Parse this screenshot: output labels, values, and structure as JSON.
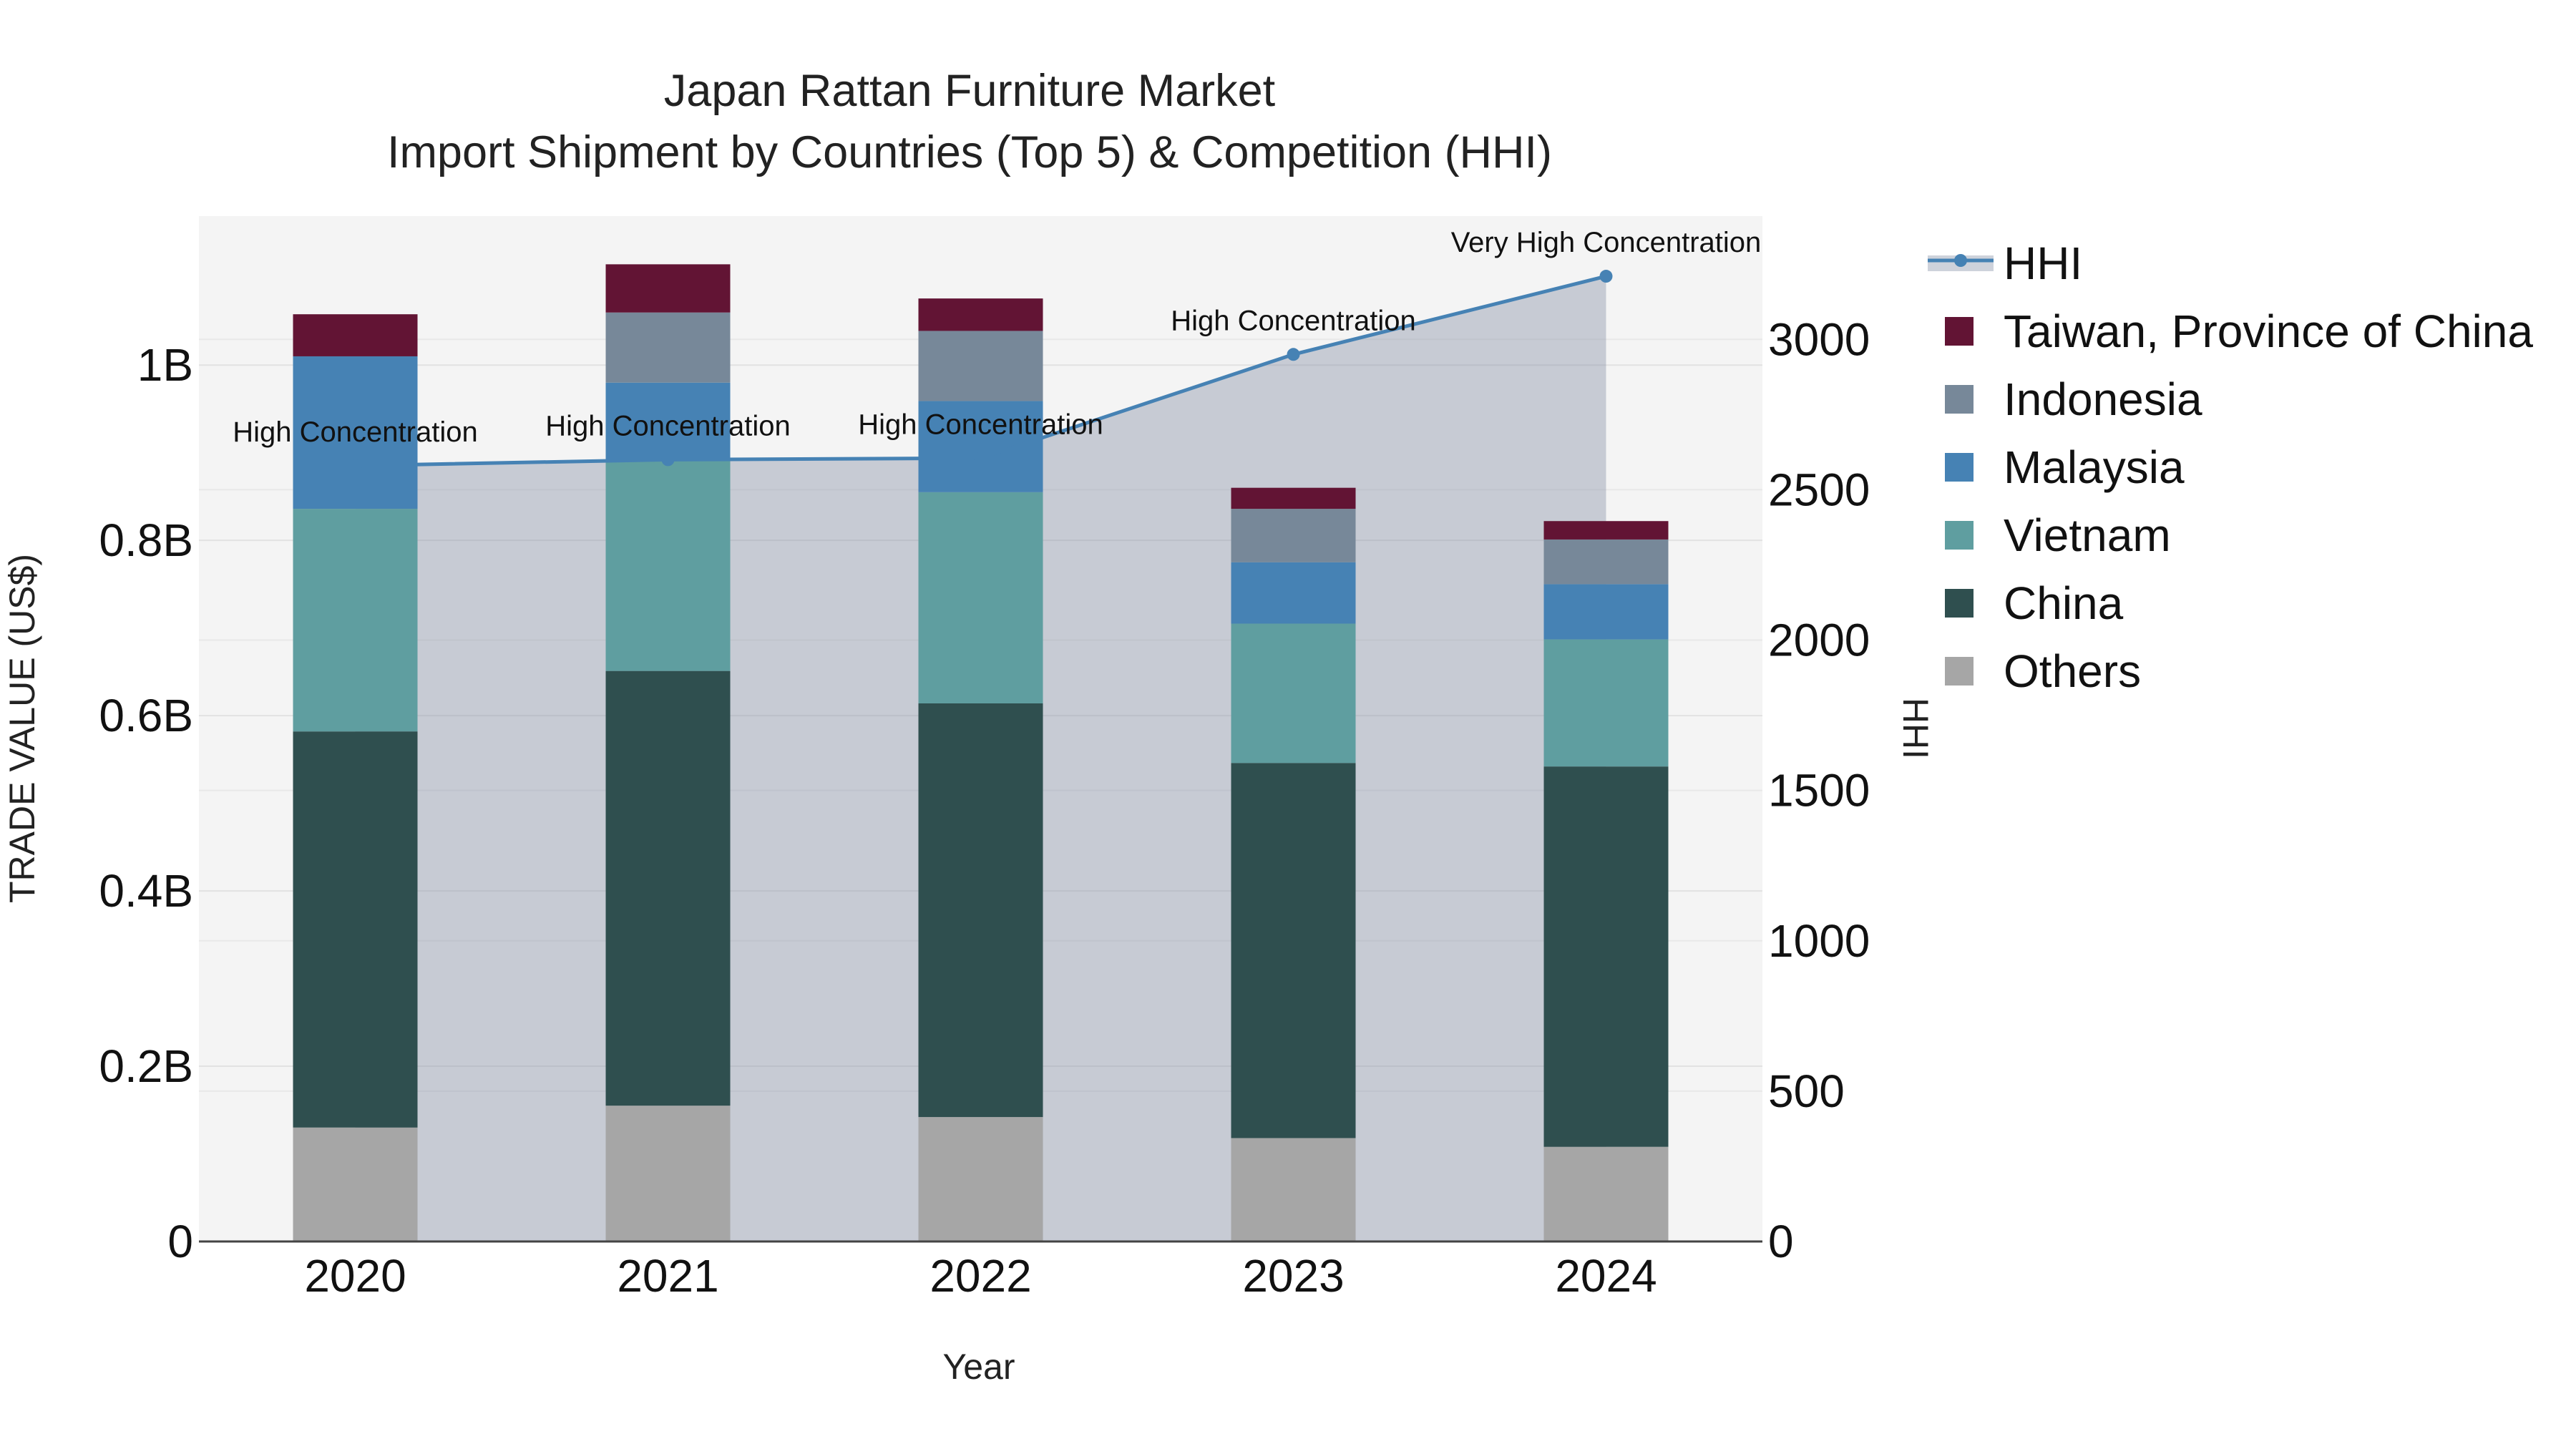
{
  "chart_data": {
    "type": "bar",
    "title": "Japan Rattan Furniture Market",
    "subtitle": "Import Shipment by Countries (Top 5) & Competition (HHI)",
    "xlabel": "Year",
    "ylabel": "TRADE VALUE (US$)",
    "y2label": "HHI",
    "categories": [
      "2020",
      "2021",
      "2022",
      "2023",
      "2024"
    ],
    "stacked": true,
    "ylim": [
      0,
      1170000000
    ],
    "y2lim": [
      0,
      3410
    ],
    "yticks": [
      {
        "value": 0,
        "label": "0"
      },
      {
        "value": 200000000,
        "label": "0.2B"
      },
      {
        "value": 400000000,
        "label": "0.4B"
      },
      {
        "value": 600000000,
        "label": "0.6B"
      },
      {
        "value": 800000000,
        "label": "0.8B"
      },
      {
        "value": 1000000000,
        "label": "1B"
      }
    ],
    "y2ticks": [
      {
        "value": 0,
        "label": "0"
      },
      {
        "value": 500,
        "label": "500"
      },
      {
        "value": 1000,
        "label": "1000"
      },
      {
        "value": 1500,
        "label": "1500"
      },
      {
        "value": 2000,
        "label": "2000"
      },
      {
        "value": 2500,
        "label": "2500"
      },
      {
        "value": 3000,
        "label": "3000"
      }
    ],
    "series": [
      {
        "name": "Others",
        "color": "#a6a6a6",
        "values": [
          130000000,
          155000000,
          142000000,
          118000000,
          108000000
        ]
      },
      {
        "name": "China",
        "color": "#2f4f4f",
        "values": [
          452000000,
          496000000,
          472000000,
          428000000,
          434000000
        ]
      },
      {
        "name": "Vietnam",
        "color": "#5f9ea0",
        "values": [
          254000000,
          240000000,
          241000000,
          159000000,
          145000000
        ]
      },
      {
        "name": "Malaysia",
        "color": "#4682b4",
        "values": [
          174000000,
          89000000,
          104000000,
          70000000,
          63000000
        ]
      },
      {
        "name": "Indonesia",
        "color": "#778899",
        "values": [
          0,
          80000000,
          80000000,
          61000000,
          51000000
        ]
      },
      {
        "name": "Taiwan, Province of China",
        "color": "#621434",
        "values": [
          48000000,
          55000000,
          37000000,
          24000000,
          21000000
        ]
      }
    ],
    "hhi": {
      "name": "HHI",
      "color": "#4682b4",
      "values": [
        2580,
        2600,
        2605,
        2950,
        3210
      ],
      "annotations": [
        "High Concentration",
        "High Concentration",
        "High Concentration",
        "High Concentration",
        "Very High Concentration"
      ]
    },
    "legend_order": [
      "HHI",
      "Taiwan, Province of China",
      "Indonesia",
      "Malaysia",
      "Vietnam",
      "China",
      "Others"
    ],
    "grid": true,
    "legend_position": "right",
    "plot_background": "#f4f4f4"
  }
}
